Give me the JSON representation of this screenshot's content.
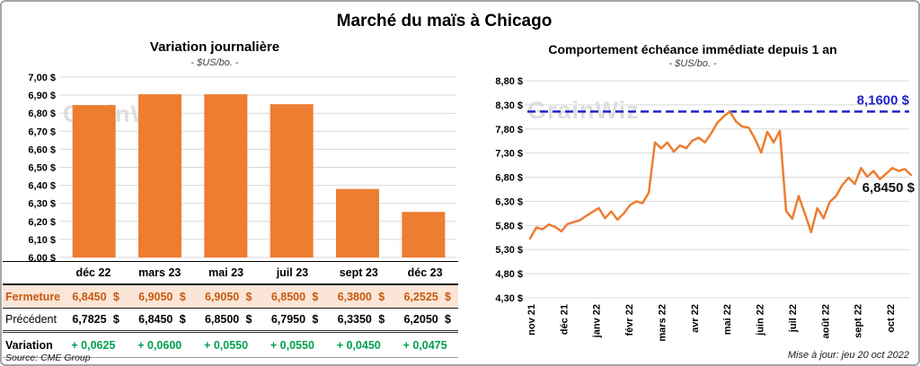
{
  "title": "Marché du maïs à Chicago",
  "watermark": "GrainWiz",
  "source": "Source: CME Group",
  "updated": "Mise à jour: jeu 20 oct 2022",
  "colors": {
    "bar": "#ED7D31",
    "line": "#ED7D31",
    "ref_line": "#2323C8",
    "grid": "#D9D9D9",
    "fermeture_bg": "#FBE5D6",
    "fermeture_text": "#C55A11",
    "variation_text": "#00A050"
  },
  "chart_data": [
    {
      "type": "bar",
      "title": "Variation journalière",
      "subtitle": "- $US/bo. -",
      "categories": [
        "déc 22",
        "mars 23",
        "mai 23",
        "juil 23",
        "sept 23",
        "déc 23"
      ],
      "values": [
        6.845,
        6.905,
        6.905,
        6.85,
        6.38,
        6.2525
      ],
      "ylabel": "$US/bo.",
      "ylim": [
        6.0,
        7.0
      ],
      "ytick_step": 0.1,
      "grid": true,
      "legend": false
    },
    {
      "type": "line",
      "title": "Comportement échéance immédiate depuis 1 an",
      "subtitle": "- $US/bo. -",
      "x_labels": [
        "nov 21",
        "déc 21",
        "janv 22",
        "févr 22",
        "mars 22",
        "avr 22",
        "mai 22",
        "juin 22",
        "juil 22",
        "août 22",
        "sept 22",
        "oct 22"
      ],
      "values": [
        5.53,
        5.76,
        5.72,
        5.82,
        5.77,
        5.68,
        5.83,
        5.87,
        5.91,
        6.0,
        6.08,
        6.16,
        5.95,
        6.09,
        5.92,
        6.05,
        6.22,
        6.3,
        6.26,
        6.48,
        7.52,
        7.4,
        7.52,
        7.33,
        7.46,
        7.4,
        7.56,
        7.62,
        7.52,
        7.71,
        7.93,
        8.06,
        8.16,
        7.95,
        7.85,
        7.83,
        7.6,
        7.31,
        7.74,
        7.52,
        7.76,
        6.1,
        5.94,
        6.41,
        6.05,
        5.66,
        6.16,
        5.95,
        6.29,
        6.41,
        6.64,
        6.79,
        6.66,
        6.99,
        6.81,
        6.93,
        6.76,
        6.87,
        6.99,
        6.93,
        6.97,
        6.845
      ],
      "ylabel": "$US/bo.",
      "ylim": [
        4.3,
        8.8
      ],
      "ytick_step": 0.5,
      "grid": true,
      "legend": false,
      "ref_line": {
        "value": 8.16,
        "label": "8,1600 $"
      },
      "last_point_label": {
        "value": 6.845,
        "label": "6,8450 $"
      }
    }
  ],
  "table": {
    "columns": [
      "déc 22",
      "mars 23",
      "mai 23",
      "juil 23",
      "sept 23",
      "déc 23"
    ],
    "rows": [
      {
        "label": "Fermeture",
        "style": "fermeture",
        "currency": "$",
        "values": [
          "6,8450",
          "6,9050",
          "6,9050",
          "6,8500",
          "6,3800",
          "6,2525"
        ]
      },
      {
        "label": "Précédent",
        "style": "precedent",
        "currency": "$",
        "values": [
          "6,7825",
          "6,8450",
          "6,8500",
          "6,7950",
          "6,3350",
          "6,2050"
        ]
      },
      {
        "label": "Variation",
        "style": "variation",
        "currency": "",
        "values": [
          "+ 0,0625",
          "+ 0,0600",
          "+ 0,0550",
          "+ 0,0550",
          "+ 0,0450",
          "+ 0,0475"
        ]
      }
    ]
  }
}
